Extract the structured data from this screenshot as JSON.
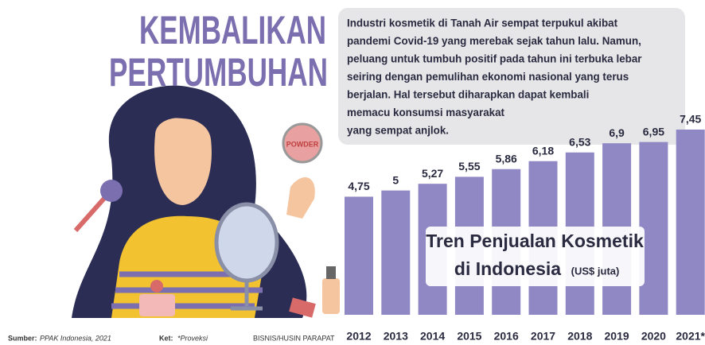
{
  "header": {
    "title_lines": [
      "KEMBALIKAN",
      "PERTUMBUHAN"
    ]
  },
  "paragraph_lines": [
    "Industri kosmetik di Tanah Air sempat terpukul akibat",
    "pandemi Covid-19 yang merebak sejak tahun lalu. Namun,",
    "peluang untuk tumbuh positif pada tahun ini terbuka lebar",
    "seiring dengan pemulihan ekonomi nasional yang terus",
    "berjalan. Hal tersebut diharapkan dapat kembali",
    "memacu konsumsi masyarakat",
    "yang sempat anjlok."
  ],
  "illustration": {
    "powder": "POWDER"
  },
  "chart_data": {
    "type": "bar",
    "title_lines": [
      "Tren Penjualan Kosmetik",
      "di Indonesia"
    ],
    "unit": "(US$ juta)",
    "categories": [
      "2012",
      "2013",
      "2014",
      "2015",
      "2016",
      "2017",
      "2018",
      "2019",
      "2020",
      "2021*"
    ],
    "values": [
      4.75,
      5,
      5.27,
      5.55,
      5.86,
      6.18,
      6.53,
      6.9,
      6.95,
      7.45
    ],
    "value_labels": [
      "4,75",
      "5",
      "5,27",
      "5,55",
      "5,86",
      "6,18",
      "6,53",
      "6,9",
      "6,95",
      "7,45"
    ],
    "color": "#9088c4"
  },
  "footer": {
    "source_label": "Sumber:",
    "source": "PPAK Indonesia, 2021",
    "note_label": "Ket:",
    "note": "*Proveksi",
    "credit": "BISNIS/HUSIN PARAPAT"
  }
}
